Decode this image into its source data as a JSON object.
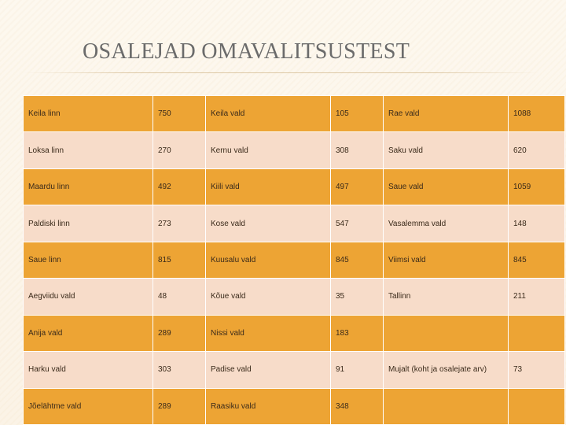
{
  "title": "OSALEJAD OMAVALITSUSTEST",
  "rows": [
    [
      "Keila linn",
      "750",
      "Keila vald",
      "105",
      "Rae vald",
      "1088"
    ],
    [
      "Loksa linn",
      "270",
      "Kernu vald",
      "308",
      "Saku vald",
      "620"
    ],
    [
      "Maardu linn",
      "492",
      "Kiili vald",
      "497",
      "Saue vald",
      "1059"
    ],
    [
      "Paldiski linn",
      "273",
      "Kose vald",
      "547",
      "Vasalemma vald",
      "148"
    ],
    [
      "Saue linn",
      "815",
      "Kuusalu vald",
      "845",
      "Viimsi vald",
      "845"
    ],
    [
      "Aegviidu vald",
      "48",
      "Kõue vald",
      "35",
      "Tallinn",
      "211"
    ],
    [
      "Anija vald",
      "289",
      "Nissi vald",
      "183",
      "",
      ""
    ],
    [
      "Harku vald",
      "303",
      "Padise vald",
      "91",
      "Mujalt (koht ja osalejate arv)",
      "73"
    ],
    [
      "Jõelähtme vald",
      "289",
      "Raasiku vald",
      "348",
      "",
      ""
    ]
  ],
  "colors": {
    "row_dark": "#eda434",
    "row_light": "#f7dcc9",
    "title": "#6b6b6b"
  }
}
